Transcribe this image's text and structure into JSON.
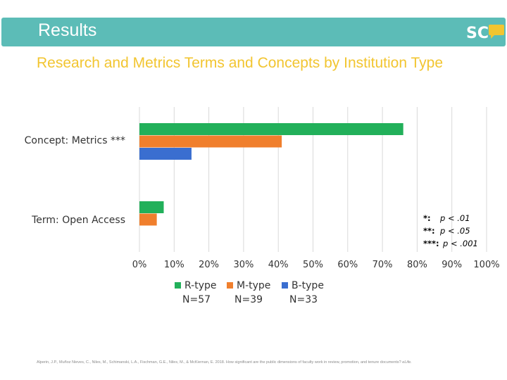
{
  "header": {
    "title": "Results",
    "logo_text": "SC",
    "color": "#5cbcb7"
  },
  "subtitle": "Research and Metrics Terms and Concepts by Institution Type",
  "chart_data": {
    "type": "bar",
    "orientation": "horizontal",
    "categories": [
      "Concept: Metrics ***",
      "Term: Open Access"
    ],
    "series": [
      {
        "name": "R-type",
        "n_label": "N=57",
        "color": "#22b05a",
        "values": [
          76,
          7
        ]
      },
      {
        "name": "M-type",
        "n_label": "N=39",
        "color": "#f07f2d",
        "values": [
          41,
          5
        ]
      },
      {
        "name": "B-type",
        "n_label": "N=33",
        "color": "#3a6ed0",
        "values": [
          15,
          null
        ]
      }
    ],
    "xlim": [
      0,
      100
    ],
    "xticks": [
      "0%",
      "10%",
      "20%",
      "30%",
      "40%",
      "50%",
      "60%",
      "70%",
      "80%",
      "90%",
      "100%"
    ],
    "grid": true,
    "legend_position": "bottom"
  },
  "significance": [
    {
      "key": "*:",
      "value": "p < .01"
    },
    {
      "key": "**:",
      "value": "p < .05"
    },
    {
      "key": "***:",
      "value": "p < .001"
    }
  ],
  "citation": {
    "text": "Alperin, J.P., Muñoz Nieves, C., Niles, M., Schimanski, L.A., Fischman, G.E., Niles, M., & McKiernan, E. 2018. How significant are the public dimensions of faculty work in review, promotion, and tenure documents?",
    "journal": "eLife."
  }
}
